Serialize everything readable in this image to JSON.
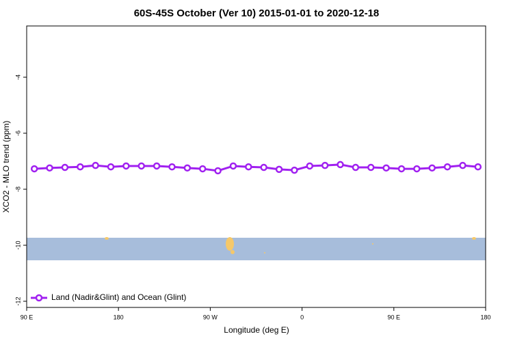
{
  "chart_data": {
    "type": "line",
    "title": "60S-45S October (Ver 10)   2015-01-01 to 2020-12-18",
    "x_label": "Longitude (deg E)",
    "y_label": "XCO2 - MLO trend (ppm)",
    "xlim": [
      90,
      540
    ],
    "xticks": [
      {
        "value": 90,
        "label": "90 E"
      },
      180,
      {
        "value": 270,
        "label": "90 W"
      },
      {
        "value": 360,
        "label": "0"
      },
      {
        "value": 450,
        "label": "90 E"
      },
      {
        "value": 540,
        "label": "180"
      }
    ],
    "ylim": [
      -12.22,
      -2.17
    ],
    "yticks": [
      -4,
      -6,
      -8,
      -10,
      -12
    ],
    "legend": "bottom-left",
    "x": [
      97.5,
      112.5,
      127.5,
      142.5,
      157.5,
      172.5,
      187.5,
      202.5,
      217.5,
      232.5,
      247.5,
      262.5,
      277.5,
      292.5,
      307.5,
      322.5,
      337.5,
      352.5,
      367.5,
      382.5,
      397.5,
      412.5,
      427.5,
      442.5,
      457.5,
      472.5,
      487.5,
      502.5,
      517.5,
      532.5
    ],
    "series": [
      {
        "name": "Land (Nadir&Glint) and Ocean (Glint)",
        "color": "#a020f0",
        "values": [
          -7.27,
          -7.24,
          -7.22,
          -7.2,
          -7.15,
          -7.2,
          -7.17,
          -7.17,
          -7.17,
          -7.2,
          -7.24,
          -7.27,
          -7.34,
          -7.17,
          -7.2,
          -7.22,
          -7.29,
          -7.32,
          -7.17,
          -7.15,
          -7.12,
          -7.22,
          -7.22,
          -7.24,
          -7.27,
          -7.27,
          -7.24,
          -7.2,
          -7.15,
          -7.2
        ]
      }
    ]
  }
}
